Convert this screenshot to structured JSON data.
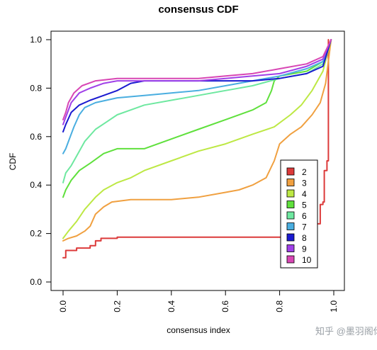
{
  "chart_data": {
    "type": "line",
    "title": "consensus CDF",
    "xlabel": "consensus index",
    "ylabel": "CDF",
    "xlim": [
      0,
      1
    ],
    "ylim": [
      0,
      1
    ],
    "x_ticks": [
      "0.0",
      "0.2",
      "0.4",
      "0.6",
      "0.8",
      "1.0"
    ],
    "y_ticks": [
      "0.0",
      "0.2",
      "0.4",
      "0.6",
      "0.8",
      "1.0"
    ],
    "legend_position": "right",
    "grid": false,
    "series": [
      {
        "name": "2",
        "color": "#dc3a3a",
        "step": true,
        "points": [
          [
            0.0,
            0.1
          ],
          [
            0.01,
            0.13
          ],
          [
            0.05,
            0.14
          ],
          [
            0.1,
            0.15
          ],
          [
            0.12,
            0.17
          ],
          [
            0.14,
            0.18
          ],
          [
            0.2,
            0.185
          ],
          [
            0.6,
            0.185
          ],
          [
            0.9,
            0.185
          ],
          [
            0.93,
            0.24
          ],
          [
            0.95,
            0.32
          ],
          [
            0.96,
            0.33
          ],
          [
            0.965,
            0.46
          ],
          [
            0.975,
            0.5
          ],
          [
            0.98,
            1.0
          ]
        ]
      },
      {
        "name": "3",
        "color": "#f0a040",
        "points": [
          [
            0.0,
            0.17
          ],
          [
            0.02,
            0.18
          ],
          [
            0.05,
            0.19
          ],
          [
            0.08,
            0.21
          ],
          [
            0.1,
            0.23
          ],
          [
            0.12,
            0.28
          ],
          [
            0.15,
            0.31
          ],
          [
            0.18,
            0.33
          ],
          [
            0.25,
            0.34
          ],
          [
            0.4,
            0.34
          ],
          [
            0.5,
            0.35
          ],
          [
            0.6,
            0.37
          ],
          [
            0.65,
            0.38
          ],
          [
            0.7,
            0.4
          ],
          [
            0.75,
            0.43
          ],
          [
            0.78,
            0.5
          ],
          [
            0.8,
            0.57
          ],
          [
            0.84,
            0.61
          ],
          [
            0.88,
            0.64
          ],
          [
            0.92,
            0.69
          ],
          [
            0.95,
            0.74
          ],
          [
            0.97,
            0.82
          ],
          [
            0.99,
            1.0
          ]
        ]
      },
      {
        "name": "4",
        "color": "#bde844",
        "points": [
          [
            0.0,
            0.18
          ],
          [
            0.02,
            0.21
          ],
          [
            0.05,
            0.25
          ],
          [
            0.08,
            0.3
          ],
          [
            0.12,
            0.35
          ],
          [
            0.15,
            0.38
          ],
          [
            0.2,
            0.41
          ],
          [
            0.25,
            0.43
          ],
          [
            0.3,
            0.46
          ],
          [
            0.4,
            0.5
          ],
          [
            0.5,
            0.54
          ],
          [
            0.6,
            0.57
          ],
          [
            0.7,
            0.61
          ],
          [
            0.78,
            0.64
          ],
          [
            0.84,
            0.69
          ],
          [
            0.88,
            0.73
          ],
          [
            0.92,
            0.79
          ],
          [
            0.96,
            0.87
          ],
          [
            0.99,
            1.0
          ]
        ]
      },
      {
        "name": "5",
        "color": "#5fe03c",
        "points": [
          [
            0.0,
            0.35
          ],
          [
            0.01,
            0.38
          ],
          [
            0.03,
            0.42
          ],
          [
            0.06,
            0.46
          ],
          [
            0.1,
            0.49
          ],
          [
            0.15,
            0.53
          ],
          [
            0.2,
            0.55
          ],
          [
            0.3,
            0.55
          ],
          [
            0.4,
            0.59
          ],
          [
            0.5,
            0.63
          ],
          [
            0.6,
            0.67
          ],
          [
            0.7,
            0.71
          ],
          [
            0.75,
            0.74
          ],
          [
            0.77,
            0.79
          ],
          [
            0.78,
            0.83
          ],
          [
            0.8,
            0.85
          ],
          [
            0.9,
            0.87
          ],
          [
            0.96,
            0.91
          ],
          [
            0.99,
            1.0
          ]
        ]
      },
      {
        "name": "6",
        "color": "#6ee8a0",
        "points": [
          [
            0.0,
            0.41
          ],
          [
            0.01,
            0.45
          ],
          [
            0.03,
            0.48
          ],
          [
            0.05,
            0.52
          ],
          [
            0.08,
            0.58
          ],
          [
            0.12,
            0.63
          ],
          [
            0.16,
            0.66
          ],
          [
            0.2,
            0.69
          ],
          [
            0.25,
            0.71
          ],
          [
            0.3,
            0.73
          ],
          [
            0.4,
            0.75
          ],
          [
            0.5,
            0.77
          ],
          [
            0.6,
            0.79
          ],
          [
            0.7,
            0.81
          ],
          [
            0.8,
            0.84
          ],
          [
            0.9,
            0.86
          ],
          [
            0.96,
            0.9
          ],
          [
            0.99,
            1.0
          ]
        ]
      },
      {
        "name": "7",
        "color": "#4aaee0",
        "points": [
          [
            0.0,
            0.53
          ],
          [
            0.01,
            0.55
          ],
          [
            0.02,
            0.58
          ],
          [
            0.04,
            0.64
          ],
          [
            0.06,
            0.69
          ],
          [
            0.08,
            0.72
          ],
          [
            0.12,
            0.74
          ],
          [
            0.2,
            0.76
          ],
          [
            0.3,
            0.77
          ],
          [
            0.4,
            0.78
          ],
          [
            0.5,
            0.79
          ],
          [
            0.6,
            0.81
          ],
          [
            0.7,
            0.83
          ],
          [
            0.8,
            0.85
          ],
          [
            0.9,
            0.88
          ],
          [
            0.96,
            0.91
          ],
          [
            0.99,
            1.0
          ]
        ]
      },
      {
        "name": "8",
        "color": "#1a1ad0",
        "points": [
          [
            0.0,
            0.62
          ],
          [
            0.01,
            0.65
          ],
          [
            0.03,
            0.7
          ],
          [
            0.06,
            0.73
          ],
          [
            0.1,
            0.75
          ],
          [
            0.15,
            0.77
          ],
          [
            0.2,
            0.79
          ],
          [
            0.25,
            0.82
          ],
          [
            0.3,
            0.83
          ],
          [
            0.4,
            0.83
          ],
          [
            0.5,
            0.83
          ],
          [
            0.6,
            0.83
          ],
          [
            0.7,
            0.83
          ],
          [
            0.8,
            0.84
          ],
          [
            0.9,
            0.86
          ],
          [
            0.96,
            0.89
          ],
          [
            0.99,
            1.0
          ]
        ]
      },
      {
        "name": "9",
        "color": "#a040e8",
        "points": [
          [
            0.0,
            0.65
          ],
          [
            0.01,
            0.68
          ],
          [
            0.03,
            0.74
          ],
          [
            0.06,
            0.78
          ],
          [
            0.1,
            0.8
          ],
          [
            0.15,
            0.82
          ],
          [
            0.2,
            0.83
          ],
          [
            0.3,
            0.83
          ],
          [
            0.4,
            0.83
          ],
          [
            0.5,
            0.83
          ],
          [
            0.6,
            0.84
          ],
          [
            0.7,
            0.85
          ],
          [
            0.8,
            0.86
          ],
          [
            0.9,
            0.89
          ],
          [
            0.96,
            0.92
          ],
          [
            0.99,
            1.0
          ]
        ]
      },
      {
        "name": "10",
        "color": "#d846b4",
        "points": [
          [
            0.0,
            0.67
          ],
          [
            0.01,
            0.7
          ],
          [
            0.02,
            0.74
          ],
          [
            0.04,
            0.78
          ],
          [
            0.07,
            0.81
          ],
          [
            0.12,
            0.83
          ],
          [
            0.2,
            0.84
          ],
          [
            0.3,
            0.84
          ],
          [
            0.4,
            0.84
          ],
          [
            0.5,
            0.84
          ],
          [
            0.6,
            0.85
          ],
          [
            0.7,
            0.86
          ],
          [
            0.8,
            0.88
          ],
          [
            0.9,
            0.9
          ],
          [
            0.96,
            0.93
          ],
          [
            0.99,
            1.0
          ]
        ]
      }
    ]
  },
  "watermark": "知乎 @墨羽阁你"
}
